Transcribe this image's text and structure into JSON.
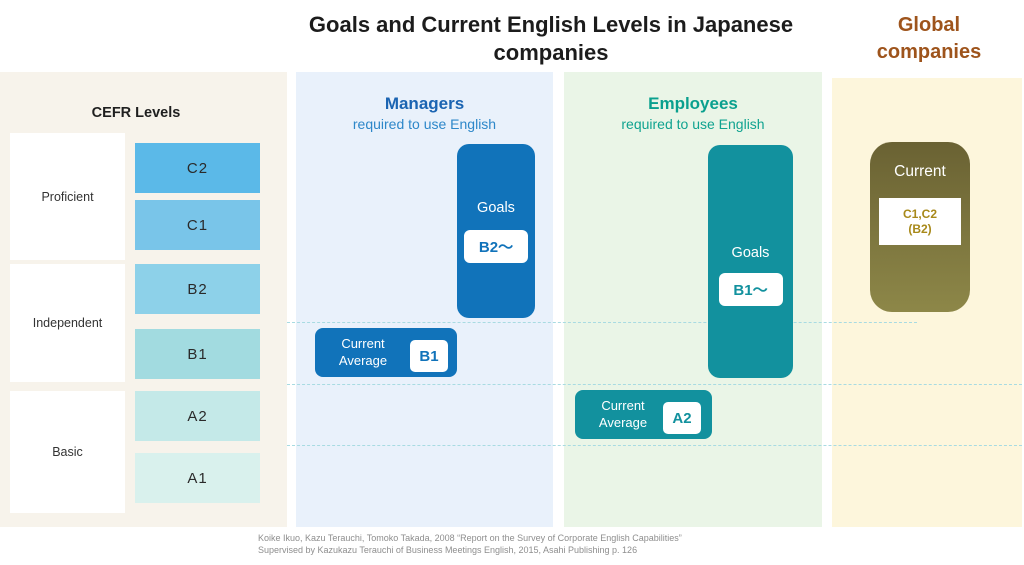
{
  "title": {
    "line1": "Goals and Current English Levels in Japanese",
    "line2": "companies"
  },
  "global_header": {
    "line1": "Global",
    "line2": "companies",
    "color": "#9e541c"
  },
  "cefr": {
    "header": "CEFR Levels",
    "categories": [
      {
        "label": "Proficient"
      },
      {
        "label": "Independent"
      },
      {
        "label": "Basic"
      }
    ],
    "levels": [
      {
        "label": "C2",
        "color": "#5bb9e8"
      },
      {
        "label": "C1",
        "color": "#79c5e9"
      },
      {
        "label": "B2",
        "color": "#8dd1e9"
      },
      {
        "label": "B1",
        "color": "#a2dbe0"
      },
      {
        "label": "A2",
        "color": "#c4e9e8"
      },
      {
        "label": "A1",
        "color": "#d9f1ed"
      }
    ]
  },
  "managers": {
    "title": "Managers",
    "subtitle": "required to use English",
    "title_color": "#1b64b2",
    "subtitle_color": "#2d87c9",
    "accent": "#1173ba",
    "goals": {
      "label": "Goals",
      "value": "B2～"
    },
    "current": {
      "label_line1": "Current",
      "label_line2": "Average",
      "value": "B1"
    }
  },
  "employees": {
    "title": "Employees",
    "subtitle": "required to use English",
    "title_color": "#0aa08e",
    "subtitle_color": "#10a390",
    "accent": "#12919e",
    "goals": {
      "label": "Goals",
      "value": "B1～"
    },
    "current": {
      "label_line1": "Current",
      "label_line2": "Average",
      "value": "A2"
    }
  },
  "global": {
    "current": {
      "label": "Current",
      "value_line1": "C1,C2",
      "value_line2": "(B2)",
      "gradient": "linear-gradient(180deg, #6a6233, #8d8748)",
      "value_color": "#a8891a"
    }
  },
  "footnote": {
    "line1": "Koike Ikuo, Kazu Terauchi, Tomoko Takada, 2008 “Report on the Survey of Corporate English Capabilities”",
    "line2": "Supervised by Kazukazu Terauchi of Business Meetings English, 2015, Asahi Publishing p. 126"
  }
}
